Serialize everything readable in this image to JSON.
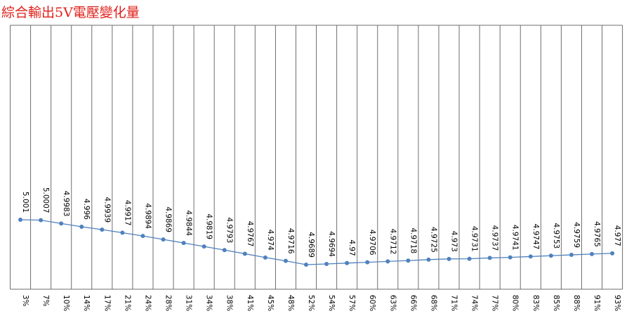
{
  "chart_data": {
    "type": "line",
    "title": "綜合輸出5V電壓變化量",
    "xlabel": "",
    "ylabel": "",
    "categories": [
      "3%",
      "7%",
      "10%",
      "14%",
      "17%",
      "21%",
      "24%",
      "28%",
      "31%",
      "34%",
      "38%",
      "41%",
      "45%",
      "48%",
      "52%",
      "54%",
      "57%",
      "60%",
      "63%",
      "66%",
      "68%",
      "71%",
      "74%",
      "77%",
      "80%",
      "83%",
      "85%",
      "88%",
      "91%",
      "93%"
    ],
    "series": [
      {
        "values": [
          5.001,
          5.0007,
          4.9983,
          4.996,
          4.9939,
          4.9917,
          4.9894,
          4.9869,
          4.9844,
          4.9819,
          4.9793,
          4.9767,
          4.974,
          4.9716,
          4.9689,
          4.9694,
          4.97,
          4.9706,
          4.9712,
          4.9718,
          4.9725,
          4.973,
          4.9731,
          4.9737,
          4.9741,
          4.9747,
          4.9753,
          4.9759,
          4.9765,
          4.977
        ],
        "labels": [
          "5.001",
          "5.0007",
          "4.9983",
          "4.996",
          "4.9939",
          "4.9917",
          "4.9894",
          "4.9869",
          "4.9844",
          "4.9819",
          "4.9793",
          "4.9767",
          "4.974",
          "4.9716",
          "4.9689",
          "4.9694",
          "4.97",
          "4.9706",
          "4.9712",
          "4.9718",
          "4.9725",
          "4.973",
          "4.9731",
          "4.9737",
          "4.9741",
          "4.9747",
          "4.9753",
          "4.9759",
          "4.9765",
          "4.977"
        ],
        "color": "#4f81bd"
      }
    ],
    "grid": "vertical",
    "legend": "none",
    "data_labels": true
  }
}
